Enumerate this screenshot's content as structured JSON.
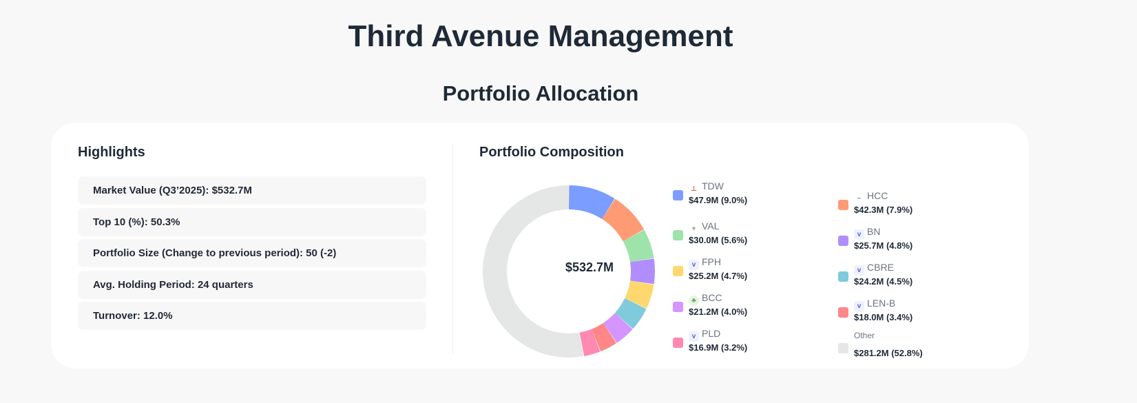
{
  "header": {
    "title": "Third Avenue Management",
    "subtitle": "Portfolio Allocation"
  },
  "highlights": {
    "title": "Highlights",
    "items": [
      "Market Value (Q3’2025): $532.7M",
      "Top 10 (%): 50.3%",
      "Portfolio Size (Change to previous period): 50 (-2)",
      "Avg. Holding Period: 24 quarters",
      "Turnover: 12.0%"
    ]
  },
  "chart_data": {
    "type": "pie",
    "title": "Portfolio Composition",
    "center_label": "$532.7M",
    "legend_placement": "right",
    "slices": [
      {
        "label": "TDW",
        "value_text": "$47.9M (9.0%)",
        "value": 47.9,
        "percent": 9.0,
        "color": "#7b9dff",
        "icon": "company-logo"
      },
      {
        "label": "HCC",
        "value_text": "$42.3M (7.9%)",
        "value": 42.3,
        "percent": 7.9,
        "color": "#ff9b74",
        "icon": "company-logo"
      },
      {
        "label": "VAL",
        "value_text": "$30.0M (5.6%)",
        "value": 30.0,
        "percent": 5.6,
        "color": "#9ee3a9",
        "icon": "diamond-logo"
      },
      {
        "label": "BN",
        "value_text": "$25.7M (4.8%)",
        "value": 25.7,
        "percent": 4.8,
        "color": "#b18eff",
        "icon": "chevron-logo"
      },
      {
        "label": "FPH",
        "value_text": "$25.2M (4.7%)",
        "value": 25.2,
        "percent": 4.7,
        "color": "#ffd76f",
        "icon": "chevron-logo"
      },
      {
        "label": "CBRE",
        "value_text": "$24.2M (4.5%)",
        "value": 24.2,
        "percent": 4.5,
        "color": "#7fcbdb",
        "icon": "chevron-logo"
      },
      {
        "label": "BCC",
        "value_text": "$21.2M (4.0%)",
        "value": 21.2,
        "percent": 4.0,
        "color": "#d495ff",
        "icon": "tree-logo"
      },
      {
        "label": "LEN-B",
        "value_text": "$18.0M (3.4%)",
        "value": 18.0,
        "percent": 3.4,
        "color": "#ff8787",
        "icon": "chevron-logo"
      },
      {
        "label": "PLD",
        "value_text": "$16.9M (3.2%)",
        "value": 16.9,
        "percent": 3.2,
        "color": "#ff89b1",
        "icon": "chevron-logo"
      },
      {
        "label": "Other",
        "value_text": "$281.2M (52.8%)",
        "value": 281.2,
        "percent": 52.8,
        "color": "#e5e6e6",
        "icon": ""
      }
    ]
  }
}
